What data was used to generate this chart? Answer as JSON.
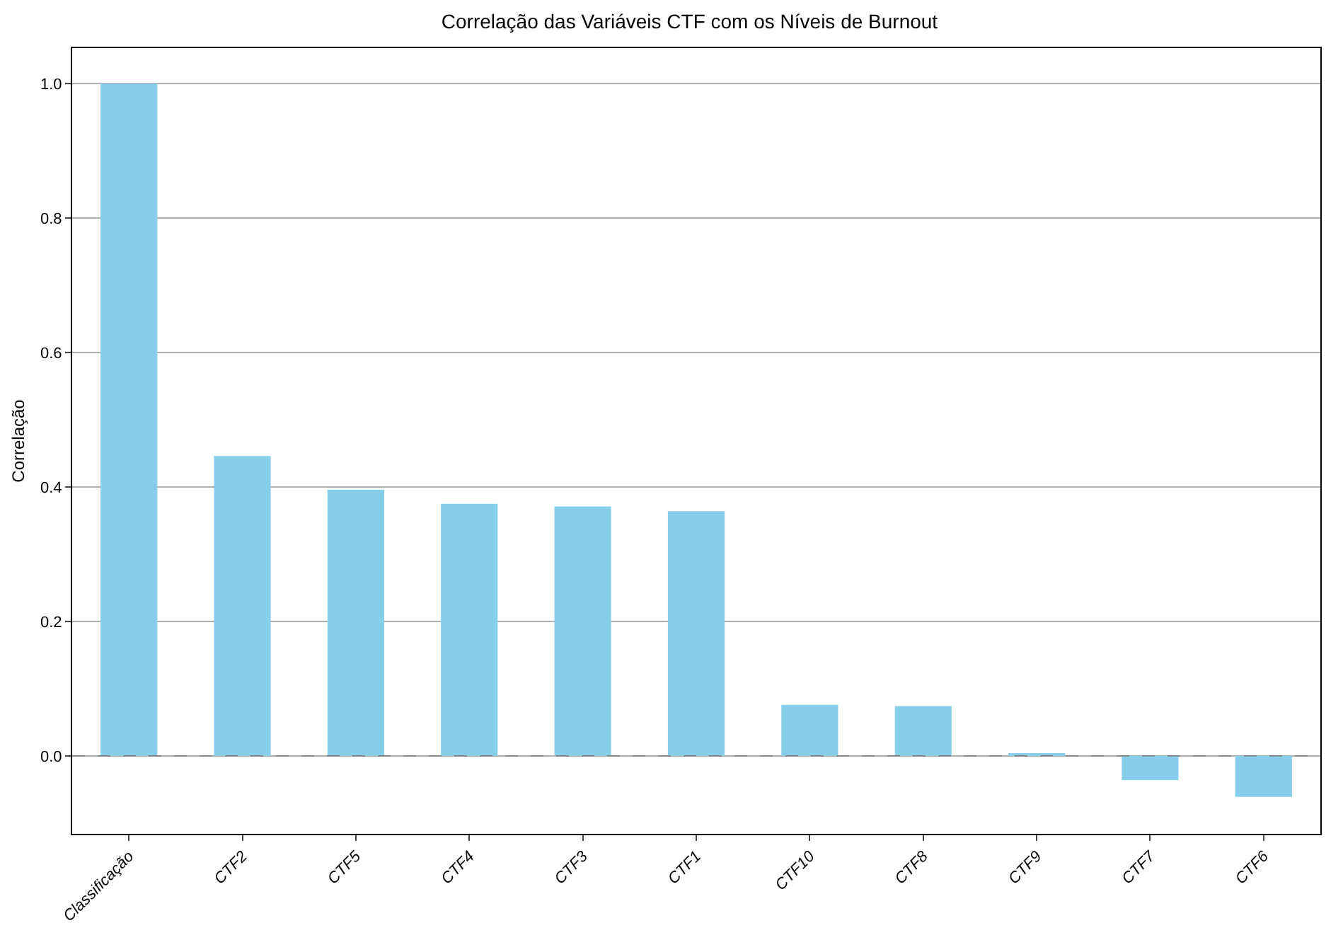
{
  "chart_data": {
    "type": "bar",
    "title": "Correlação das Variáveis CTF com os Níveis de Burnout",
    "ylabel": "Correlação",
    "categories": [
      "Classificação",
      "CTF2",
      "CTF5",
      "CTF4",
      "CTF3",
      "CTF1",
      "CTF10",
      "CTF8",
      "CTF9",
      "CTF7",
      "CTF6"
    ],
    "values": [
      1.0,
      0.446,
      0.396,
      0.375,
      0.371,
      0.364,
      0.076,
      0.074,
      0.004,
      -0.036,
      -0.061
    ],
    "color": "#87ceeb",
    "ylim": [
      -0.116,
      1.053
    ],
    "yticks": [
      {
        "value": 0,
        "label": "0.0"
      },
      0.2,
      0.4,
      0.6,
      0.8,
      {
        "value": 1,
        "label": "1.0"
      }
    ],
    "grid": "y",
    "ref_lines": [
      {
        "axis": "y",
        "value": 0,
        "color": "#808080",
        "line_style": "dashed"
      }
    ]
  }
}
